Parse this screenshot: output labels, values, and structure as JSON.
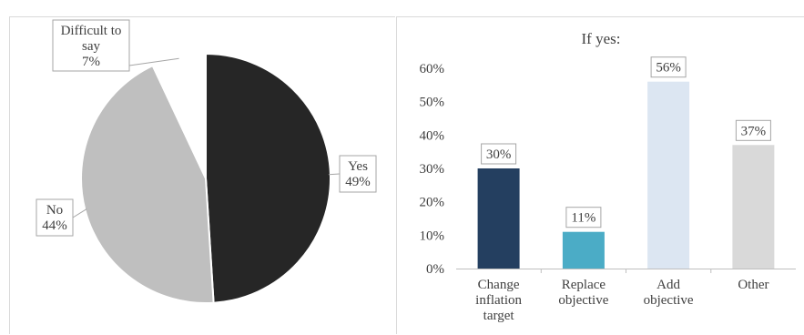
{
  "chart_data": [
    {
      "type": "pie",
      "title": "",
      "slices": [
        {
          "label": "Yes",
          "value": 49,
          "display": "49%",
          "color": "#262626"
        },
        {
          "label": "No",
          "value": 44,
          "display": "44%",
          "color": "#bfbfbf"
        },
        {
          "label": "Difficult to say",
          "label_lines": [
            "Difficult to",
            "say"
          ],
          "value": 7,
          "display": "7%",
          "color": "#ffffff"
        }
      ]
    },
    {
      "type": "bar",
      "title": "If yes:",
      "categories": [
        [
          "Change",
          "inflation",
          "target"
        ],
        [
          "Replace",
          "objective"
        ],
        [
          "Add",
          "objective"
        ],
        [
          "Other"
        ]
      ],
      "values": [
        30,
        11,
        56,
        37
      ],
      "data_labels": [
        "30%",
        "11%",
        "56%",
        "37%"
      ],
      "colors": [
        "#243f60",
        "#4bacc6",
        "#dce6f2",
        "#d9d9d9"
      ],
      "ylim": [
        0,
        60
      ],
      "yticks": [
        "0%",
        "10%",
        "20%",
        "30%",
        "40%",
        "50%",
        "60%"
      ],
      "grid": false,
      "xlabel": "",
      "ylabel": ""
    }
  ]
}
